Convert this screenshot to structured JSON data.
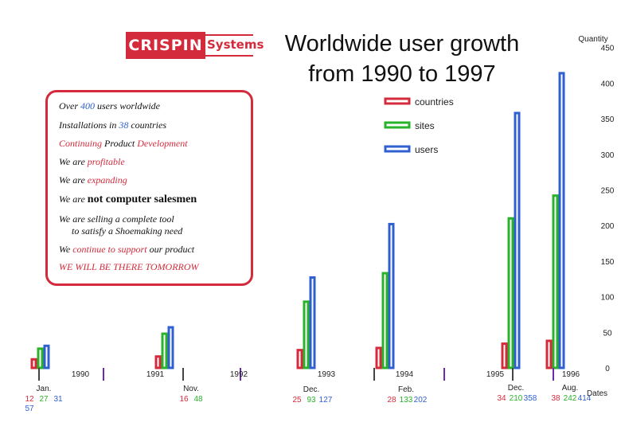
{
  "logo": {
    "brand": "CRISPIN",
    "suffix": "Systems"
  },
  "title_line1": "Worldwide user growth",
  "title_line2": "from 1990 to 1997",
  "info_box": {
    "line1": {
      "pre": "Over ",
      "num": "400",
      "post": " users worldwide"
    },
    "line2": {
      "pre": "Installations in ",
      "num": "38",
      "post": " countries"
    },
    "line3": {
      "w1": "Continuing",
      "w2": " Product ",
      "w3": "Development"
    },
    "line4": {
      "pre": "We are ",
      "hl": "profitable"
    },
    "line5": {
      "pre": "We are ",
      "hl": "expanding"
    },
    "line6": {
      "pre": "We are ",
      "hl": "not computer salesmen"
    },
    "line7a": "We are selling a complete tool",
    "line7b": "to satisfy a Shoemaking need",
    "line8": {
      "pre": "We ",
      "hl": "continue to support",
      "post": " our product"
    },
    "line9": "WE WILL BE THERE TOMORROW"
  },
  "chart_data": {
    "type": "bar",
    "title": "Worldwide user growth from 1990 to 1997",
    "ylabel": "Quantity",
    "xlabel": "Dates",
    "ylim": [
      0,
      460
    ],
    "y_ticks": [
      0,
      50,
      100,
      150,
      200,
      250,
      300,
      350,
      400,
      450
    ],
    "x_year_labels": [
      "1990",
      "1991",
      "1992",
      "1993",
      "1994",
      "1995",
      "1996"
    ],
    "series": [
      {
        "name": "countries",
        "color": "#d42b3c",
        "values": [
          12,
          16,
          25,
          28,
          34,
          38
        ]
      },
      {
        "name": "sites",
        "color": "#2ab32a",
        "values": [
          27,
          48,
          93,
          133,
          210,
          242
        ]
      },
      {
        "name": "users",
        "color": "#3060d0",
        "values": [
          31,
          57,
          127,
          202,
          358,
          414
        ]
      }
    ],
    "points": [
      {
        "date_label": "Jan.",
        "countries": 12,
        "sites": 27,
        "users": 31,
        "extra": "57"
      },
      {
        "date_label": "Nov.",
        "countries": 16,
        "sites": 48
      },
      {
        "date_label": "Dec.",
        "countries": 25,
        "sites": 93,
        "users": 127
      },
      {
        "date_label": "Feb.",
        "countries": 28,
        "sites": 133,
        "users": 202
      },
      {
        "date_label": "Dec.",
        "countries": 34,
        "sites": 210,
        "users": 358
      },
      {
        "date_label": "Aug.",
        "countries": 38,
        "sites": 242,
        "users": 414
      }
    ],
    "legend": [
      "countries",
      "sites",
      "users"
    ],
    "legend_position": "top-center",
    "grid": false
  }
}
